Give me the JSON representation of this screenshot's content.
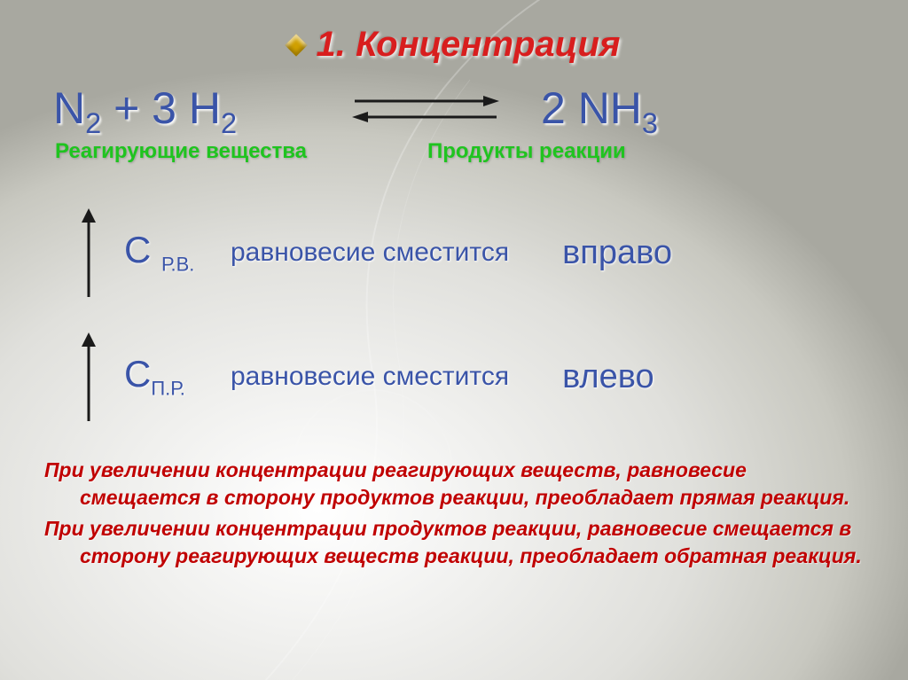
{
  "title": "1. Концентрация",
  "equation": {
    "left_html": "N<sub>2</sub> + 3 H<sub>2</sub>",
    "right_html": "2 NH<sub>3</sub>",
    "arrow_color": "#1a1a1a"
  },
  "labels": {
    "reactants": "Реагирующие вещества",
    "products": "Продукты реакции"
  },
  "rules": [
    {
      "symbol_html": "C <span class=\"c-sub\">Р.В.</span>",
      "middle": "равновесие сместится",
      "direction": "вправо"
    },
    {
      "symbol_html": "C<span class=\"c-sub\">П.Р.</span>",
      "middle": "равновесие сместится",
      "direction": "влево"
    }
  ],
  "footer": {
    "para1": "При увеличении концентрации реагирующих веществ, равновесие смещается в сторону продуктов реакции, преобладает прямая реакция.",
    "para2": "При увеличении концентрации продуктов реакции, равновесие смещается в сторону реагирующих веществ реакции, преобладает обратная реакция."
  },
  "colors": {
    "title": "#d81e1e",
    "equation": "#3a54a8",
    "labels": "#1fc41f",
    "footer": "#c00000",
    "bullet": "#d0a000",
    "arrow_up": "#1a1a1a"
  }
}
